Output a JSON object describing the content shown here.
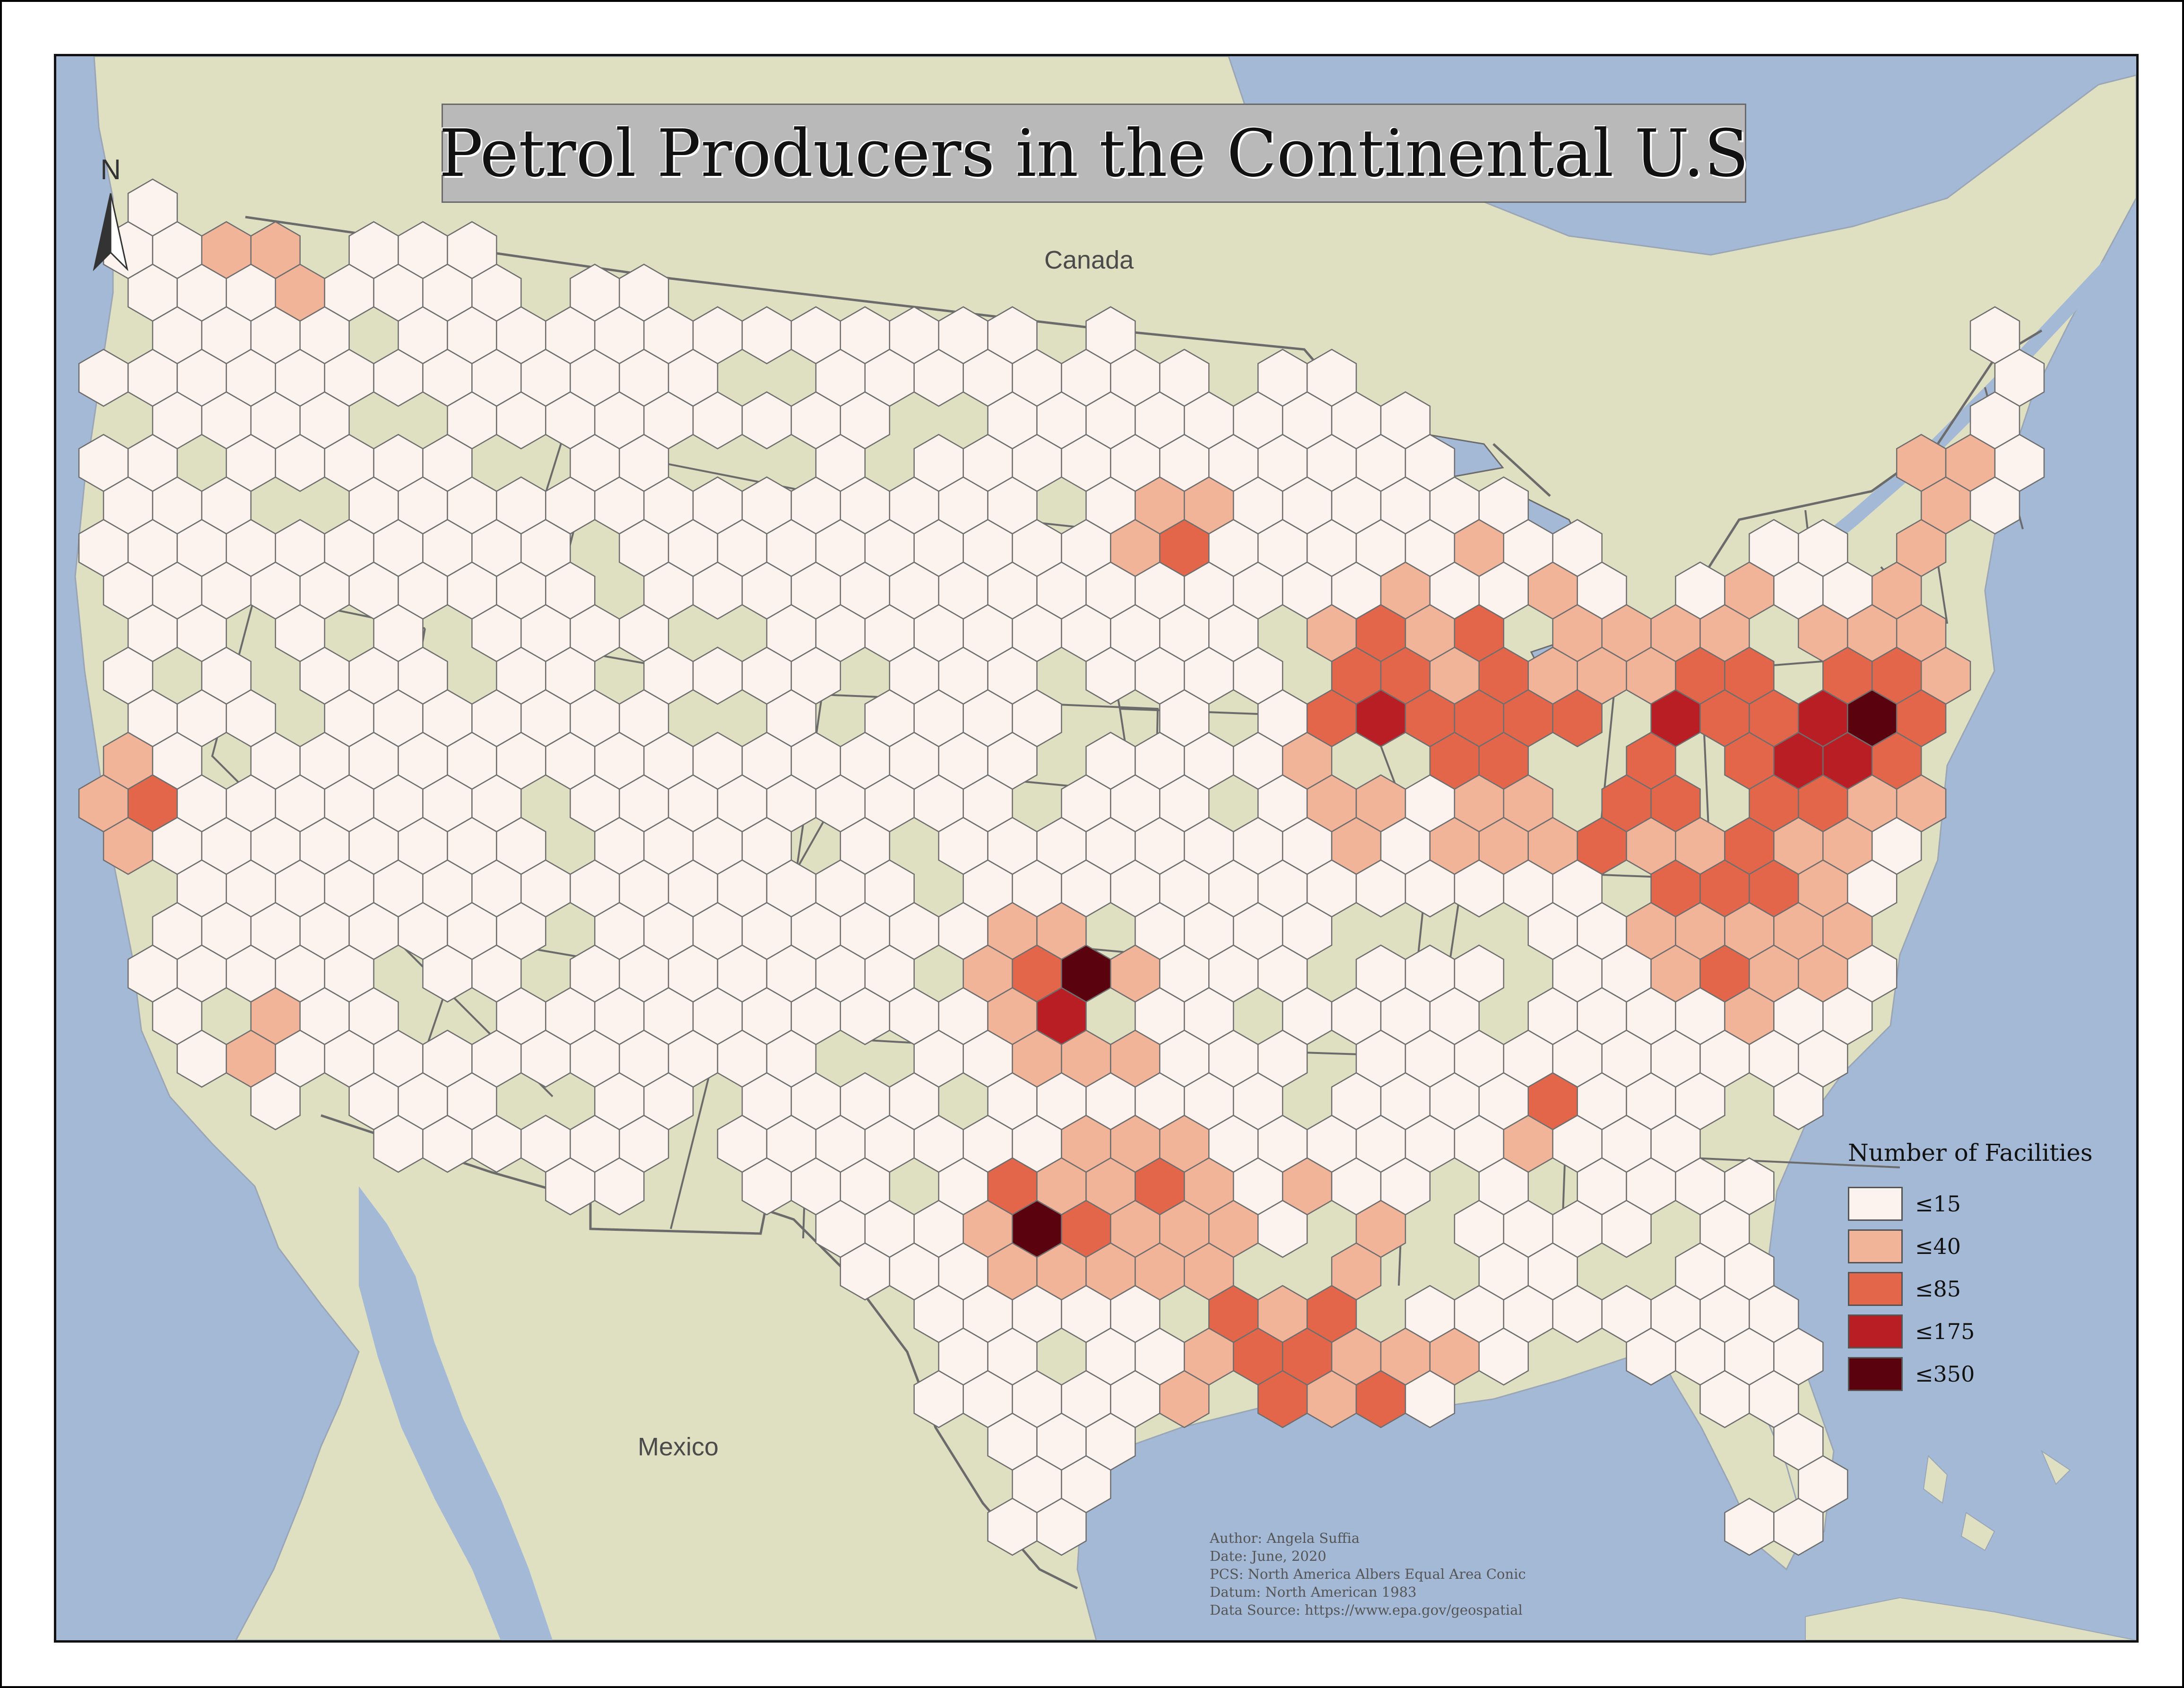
{
  "map": {
    "title": "Petrol Producers in the Continental U.S",
    "places": {
      "canada": "Canada",
      "mexico": "Mexico"
    },
    "north_label": "N",
    "colors": {
      "water": "#a3b9d6",
      "land": "#dfdfc2",
      "boundary": "#6b6b6b",
      "hex_outline": "#6e6e6e"
    },
    "legend": {
      "title": "Number of Facilities",
      "classes": [
        {
          "label": "≤15",
          "color": "#fcf3ef"
        },
        {
          "label": "≤40",
          "color": "#f1b498"
        },
        {
          "label": "≤85",
          "color": "#e3664a"
        },
        {
          "label": "≤175",
          "color": "#b81e24"
        },
        {
          "label": "≤350",
          "color": "#5a020e"
        }
      ]
    },
    "credits": {
      "author": "Author: Angela Suffia",
      "date": "Date: June, 2020",
      "pcs": "PCS: North America Albers Equal Area Conic",
      "datum": "Datum: North American 1983",
      "source": "Data Source: https://www.epa.gov/geospatial"
    }
  }
}
